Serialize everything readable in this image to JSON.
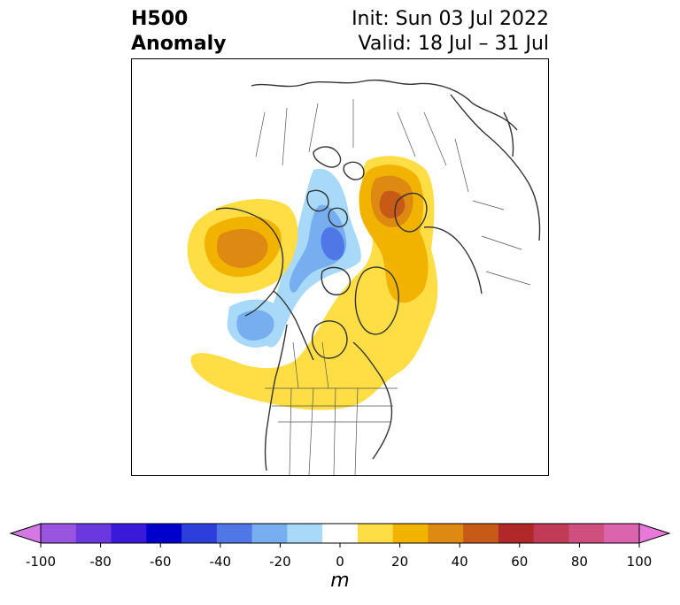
{
  "header": {
    "title_line1": "H500",
    "title_line2": "Anomaly",
    "init_text": "Init: Sun 03 Jul 2022",
    "valid_text": "Valid: 18 Jul – 31 Jul"
  },
  "colorbar": {
    "unit": "m",
    "tick_labels": [
      "-100",
      "-80",
      "-60",
      "-40",
      "-20",
      "0",
      "20",
      "40",
      "60",
      "80",
      "100"
    ],
    "colors": [
      "#d577e5",
      "#9a55e0",
      "#6a38de",
      "#3a19d8",
      "#0000cd",
      "#2c3fdc",
      "#4f78e6",
      "#76aef0",
      "#a9d9f9",
      "#ffffff",
      "#ffdd44",
      "#f2b300",
      "#de8a12",
      "#c85a18",
      "#b02828",
      "#c23b56",
      "#cf4f7e",
      "#dc63ae",
      "#e878da"
    ]
  }
}
